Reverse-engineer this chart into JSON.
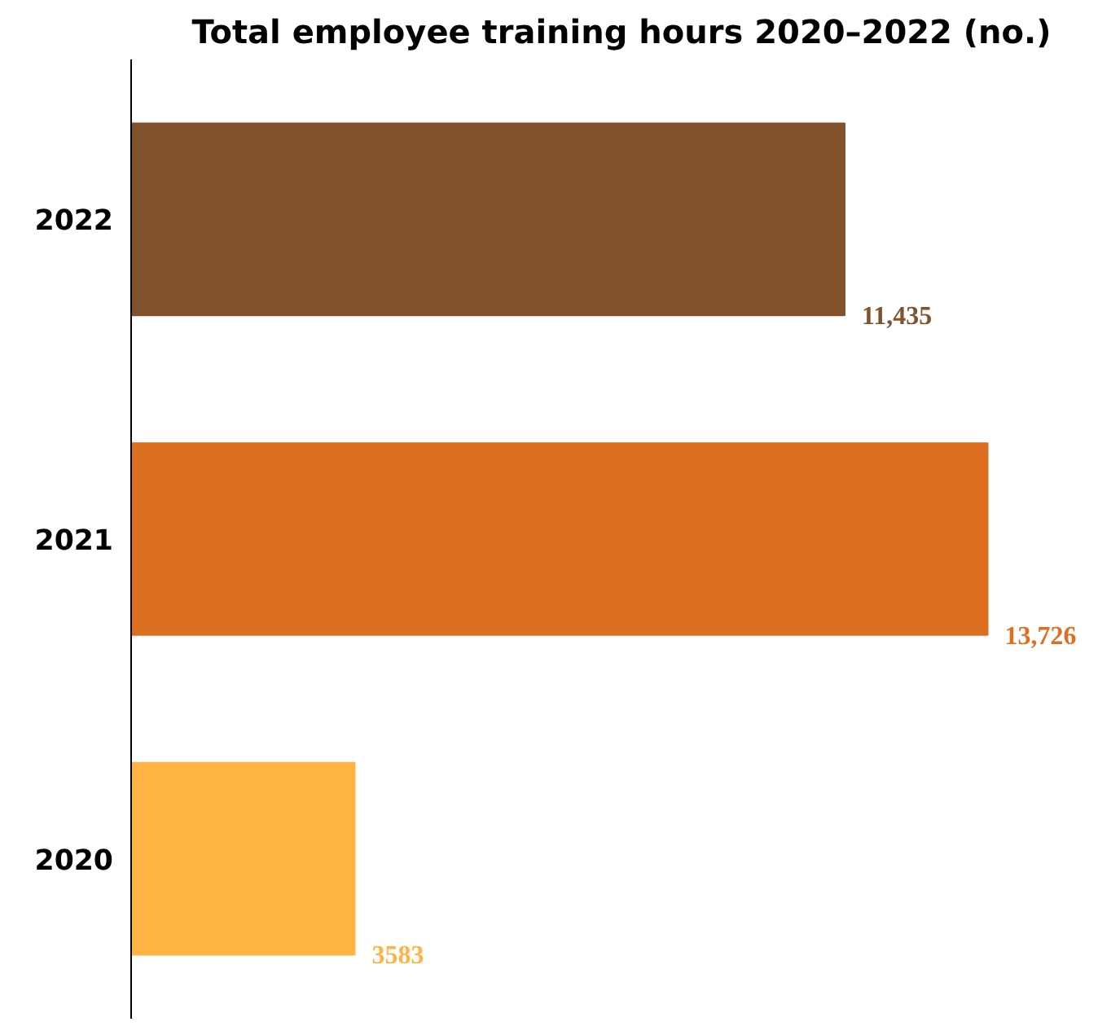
{
  "chart_data": {
    "type": "bar",
    "orientation": "horizontal",
    "title": "Total employee training hours 2020–2022 (no.)",
    "categories": [
      "2022",
      "2021",
      "2020"
    ],
    "values": [
      11435,
      13726,
      3583
    ],
    "colors": [
      "#82522d",
      "#dc7020",
      "#ffb342"
    ],
    "value_labels": [
      "11,435",
      "13,726",
      "3583"
    ],
    "grid": false
  }
}
